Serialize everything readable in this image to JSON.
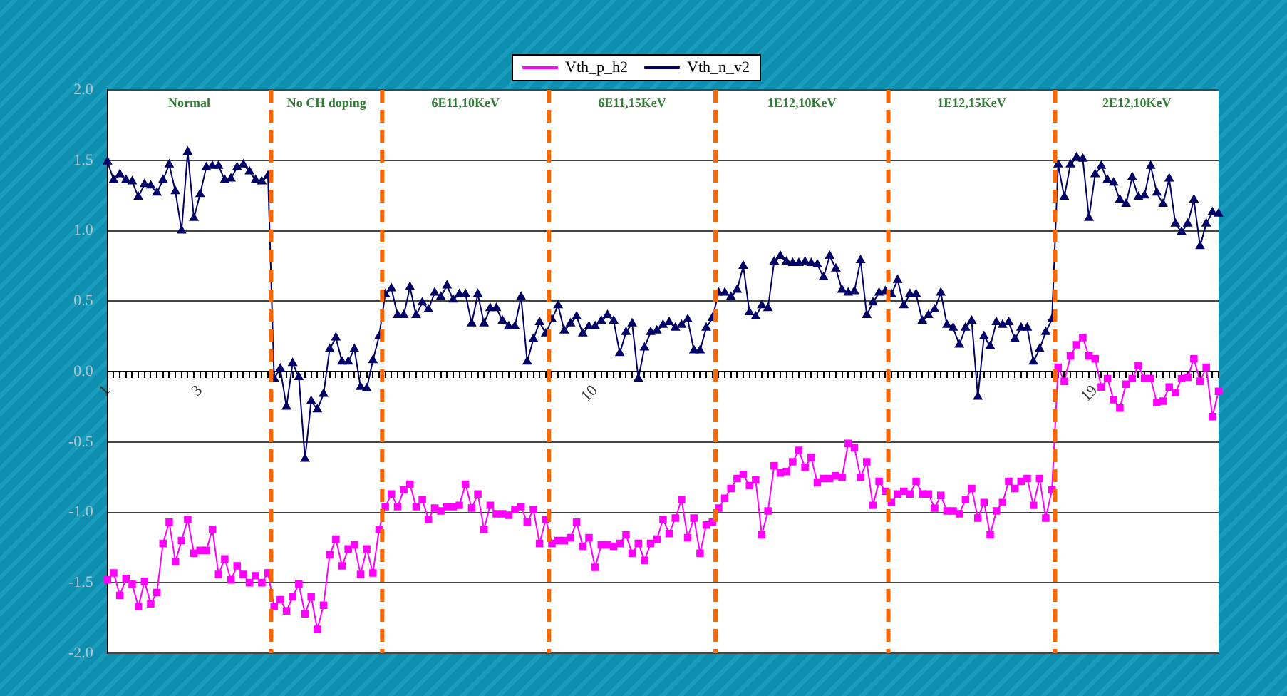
{
  "chart_data": {
    "type": "line",
    "categories": [
      "1",
      null,
      null,
      null,
      null,
      null,
      null,
      null,
      null,
      null,
      null,
      null,
      null,
      null,
      null,
      "3",
      null,
      null,
      null,
      null,
      null,
      null,
      null,
      null,
      null,
      null,
      null,
      null,
      null,
      null,
      null,
      null,
      null,
      null,
      null,
      null,
      null,
      null,
      null,
      null,
      null,
      null,
      null,
      null,
      null,
      null,
      null,
      null,
      null,
      null,
      null,
      null,
      null,
      null,
      null,
      null,
      null,
      null,
      null,
      null,
      null,
      null,
      null,
      null,
      null,
      null,
      null,
      null,
      null,
      null,
      null,
      null,
      null,
      null,
      null,
      null,
      null,
      null,
      null,
      "10",
      null,
      null,
      null,
      null,
      null,
      null,
      null,
      null,
      null,
      null,
      null,
      null,
      null,
      null,
      null,
      null,
      null,
      null,
      null,
      null,
      null,
      null,
      null,
      null,
      null,
      null,
      null,
      null,
      null,
      null,
      null,
      null,
      null,
      null,
      null,
      null,
      null,
      null,
      null,
      null,
      null,
      null,
      null,
      null,
      null,
      null,
      null,
      null,
      null,
      null,
      null,
      null,
      null,
      null,
      null,
      null,
      null,
      null,
      null,
      null,
      null,
      null,
      null,
      null,
      null,
      null,
      null,
      null,
      null,
      null,
      null,
      null,
      null,
      null,
      null,
      null,
      null,
      null,
      null,
      null,
      "19",
      null,
      null,
      null,
      null,
      null,
      null,
      null,
      null,
      null,
      null,
      null,
      null,
      null,
      null,
      null,
      null,
      null,
      null,
      null,
      null
    ],
    "series": [
      {
        "name": "Vth_p_h2",
        "color": "#ff00ff",
        "marker": "square",
        "values": [
          -1.48,
          -1.43,
          -1.59,
          -1.47,
          -1.51,
          -1.67,
          -1.49,
          -1.65,
          -1.57,
          -1.22,
          -1.07,
          -1.35,
          -1.2,
          -1.05,
          -1.29,
          -1.27,
          -1.27,
          -1.12,
          -1.44,
          -1.33,
          -1.48,
          -1.38,
          -1.44,
          -1.5,
          -1.45,
          -1.5,
          -1.43,
          -1.67,
          -1.62,
          -1.7,
          -1.6,
          -1.51,
          -1.72,
          -1.6,
          -1.83,
          -1.66,
          -1.3,
          -1.19,
          -1.38,
          -1.26,
          -1.23,
          -1.44,
          -1.26,
          -1.43,
          -1.12,
          -0.96,
          -0.87,
          -0.96,
          -0.84,
          -0.8,
          -0.96,
          -0.91,
          -1.05,
          -0.97,
          -0.99,
          -0.96,
          -0.96,
          -0.95,
          -0.8,
          -0.97,
          -0.87,
          -1.12,
          -0.95,
          -1.01,
          -1.01,
          -1.02,
          -0.98,
          -0.96,
          -1.07,
          -0.98,
          -1.22,
          -1.05,
          -1.22,
          -1.2,
          -1.2,
          -1.18,
          -1.07,
          -1.24,
          -1.18,
          -1.39,
          -1.23,
          -1.23,
          -1.24,
          -1.22,
          -1.16,
          -1.29,
          -1.22,
          -1.34,
          -1.22,
          -1.19,
          -1.05,
          -1.15,
          -1.04,
          -0.91,
          -1.18,
          -1.04,
          -1.29,
          -1.09,
          -1.07,
          -0.97,
          -0.9,
          -0.83,
          -0.76,
          -0.73,
          -0.81,
          -0.77,
          -1.16,
          -0.99,
          -0.67,
          -0.72,
          -0.71,
          -0.64,
          -0.56,
          -0.68,
          -0.61,
          -0.79,
          -0.76,
          -0.76,
          -0.74,
          -0.75,
          -0.51,
          -0.54,
          -0.75,
          -0.64,
          -0.95,
          -0.78,
          -0.85,
          -0.93,
          -0.87,
          -0.85,
          -0.87,
          -0.78,
          -0.87,
          -0.87,
          -0.97,
          -0.88,
          -0.99,
          -0.99,
          -1.01,
          -0.91,
          -0.83,
          -1.04,
          -0.93,
          -1.16,
          -0.99,
          -0.93,
          -0.78,
          -0.83,
          -0.78,
          -0.76,
          -0.95,
          -0.76,
          -1.04,
          -0.84,
          0.03,
          -0.07,
          0.11,
          0.19,
          0.24,
          0.11,
          0.09,
          -0.11,
          -0.05,
          -0.2,
          -0.26,
          -0.09,
          -0.05,
          0.04,
          -0.05,
          -0.05,
          -0.22,
          -0.21,
          -0.11,
          -0.15,
          -0.05,
          -0.04,
          0.09,
          -0.07,
          0.03,
          -0.32,
          -0.14
        ]
      },
      {
        "name": "Vth_n_v2",
        "color": "#000066",
        "marker": "triangle",
        "values": [
          1.49,
          1.36,
          1.4,
          1.36,
          1.35,
          1.24,
          1.33,
          1.32,
          1.27,
          1.36,
          1.47,
          1.28,
          1.0,
          1.56,
          1.09,
          1.26,
          1.45,
          1.46,
          1.46,
          1.36,
          1.37,
          1.45,
          1.47,
          1.42,
          1.36,
          1.35,
          1.39,
          -0.05,
          0.02,
          -0.25,
          0.06,
          -0.04,
          -0.62,
          -0.21,
          -0.27,
          -0.16,
          0.16,
          0.24,
          0.07,
          0.07,
          0.16,
          -0.11,
          -0.12,
          0.08,
          0.25,
          0.55,
          0.59,
          0.4,
          0.4,
          0.6,
          0.4,
          0.49,
          0.44,
          0.56,
          0.53,
          0.61,
          0.51,
          0.55,
          0.55,
          0.34,
          0.55,
          0.34,
          0.45,
          0.45,
          0.36,
          0.32,
          0.32,
          0.53,
          0.07,
          0.23,
          0.35,
          0.27,
          0.37,
          0.47,
          0.29,
          0.34,
          0.39,
          0.27,
          0.32,
          0.32,
          0.36,
          0.4,
          0.36,
          0.13,
          0.28,
          0.34,
          -0.05,
          0.17,
          0.28,
          0.29,
          0.33,
          0.35,
          0.31,
          0.33,
          0.37,
          0.15,
          0.15,
          0.31,
          0.38,
          0.56,
          0.56,
          0.53,
          0.58,
          0.75,
          0.42,
          0.39,
          0.47,
          0.45,
          0.78,
          0.82,
          0.78,
          0.77,
          0.77,
          0.78,
          0.77,
          0.76,
          0.67,
          0.82,
          0.73,
          0.58,
          0.56,
          0.57,
          0.79,
          0.4,
          0.49,
          0.56,
          0.57,
          0.55,
          0.65,
          0.47,
          0.55,
          0.55,
          0.36,
          0.4,
          0.44,
          0.56,
          0.33,
          0.31,
          0.19,
          0.31,
          0.36,
          -0.18,
          0.25,
          0.18,
          0.35,
          0.33,
          0.35,
          0.23,
          0.31,
          0.31,
          0.07,
          0.16,
          0.28,
          0.37,
          1.47,
          1.24,
          1.47,
          1.52,
          1.51,
          1.09,
          1.4,
          1.46,
          1.36,
          1.34,
          1.22,
          1.19,
          1.38,
          1.24,
          1.25,
          1.46,
          1.27,
          1.19,
          1.37,
          1.05,
          0.99,
          1.05,
          1.22,
          0.89,
          1.05,
          1.13,
          1.12
        ]
      }
    ],
    "ylim": [
      -2,
      2
    ],
    "yticks": [
      {
        "value": -2,
        "label": "-2.0"
      },
      {
        "value": -1.5,
        "label": "-1.5"
      },
      {
        "value": -1,
        "label": "-1.0"
      },
      {
        "value": -0.5,
        "label": "-0.5"
      },
      {
        "value": 0,
        "label": "0.0"
      },
      {
        "value": 0.5,
        "label": "0.5"
      },
      {
        "value": 1,
        "label": "1.0"
      },
      {
        "value": 1.5,
        "label": "1.5"
      },
      {
        "value": 2,
        "label": "2.0"
      }
    ],
    "grid": "y",
    "legend": "top",
    "annotations": [
      "Normal",
      "No CH doping",
      "6E11,10KeV",
      "6E11,15KeV",
      "1E12,10KeV",
      "1E12,15KeV",
      "2E12,10KeV"
    ]
  }
}
